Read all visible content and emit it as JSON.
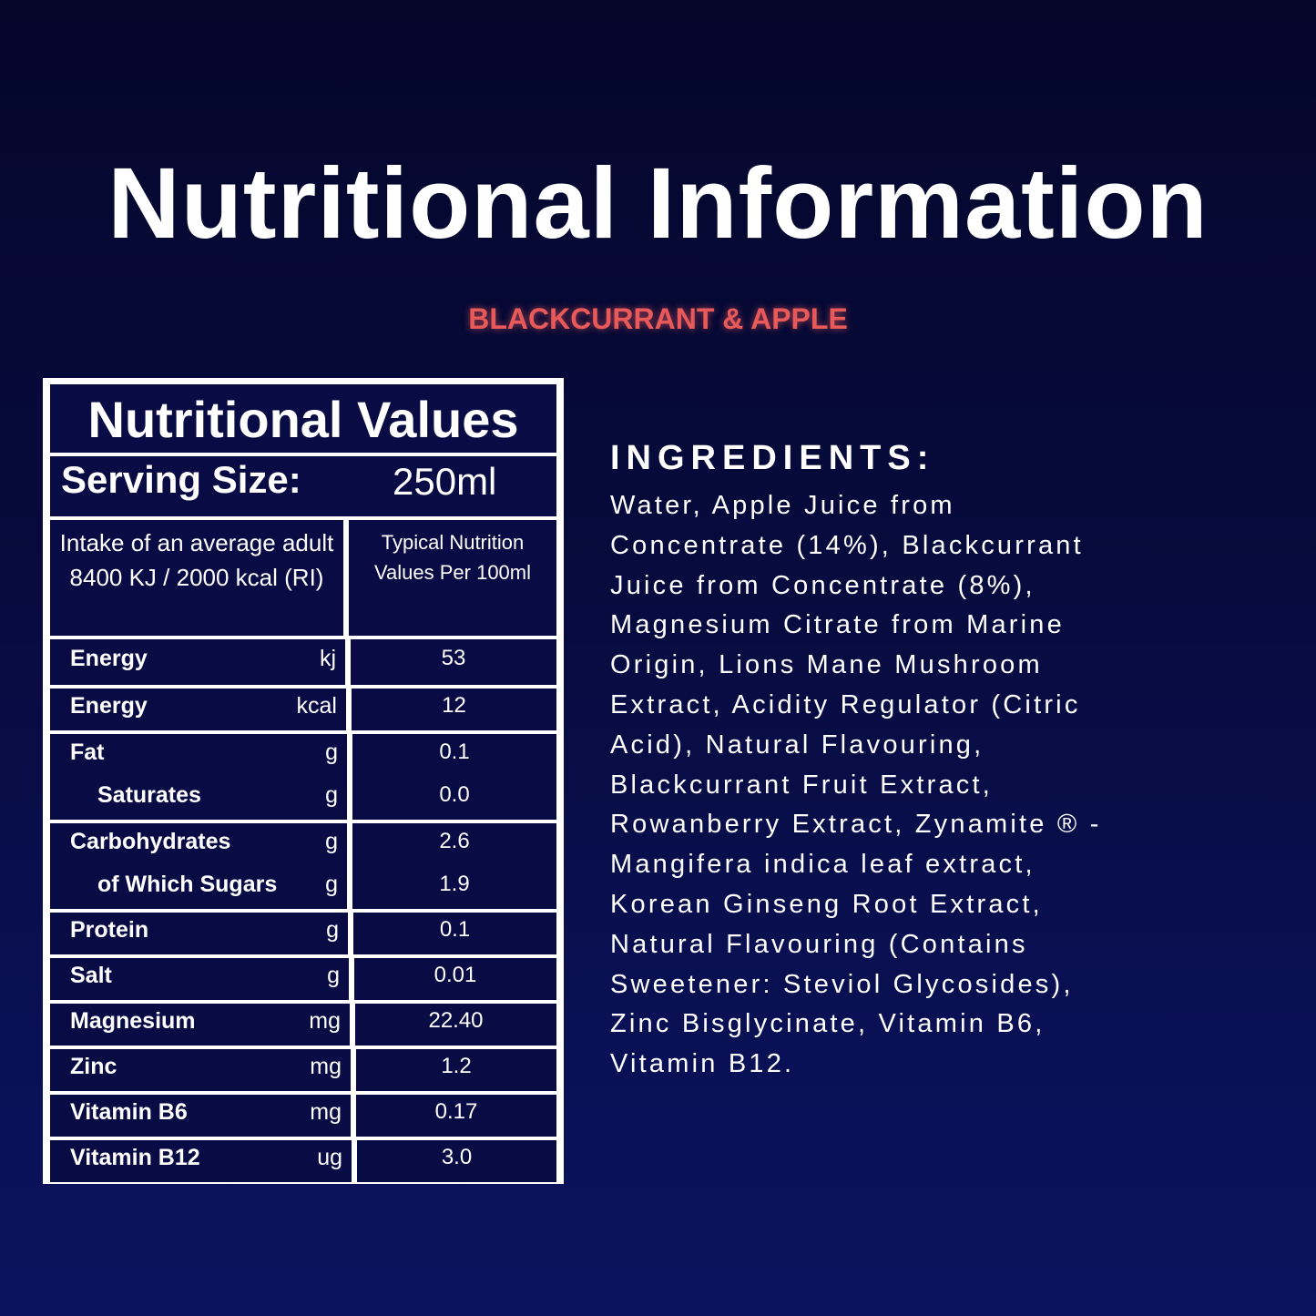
{
  "title": "Nutritional Information",
  "subtitle": "BLACKCURRANT & APPLE",
  "colors": {
    "accent": "#e85a5a",
    "background": "#070b3e",
    "border": "#ffffff"
  },
  "table": {
    "header": "Nutritional Values",
    "serving_label": "Serving Size:",
    "serving_value": "250ml",
    "intake_text": "Intake of an average adult 8400 KJ / 2000 kcal (RI)",
    "typical_text": "Typical Nutrition Values Per 100ml",
    "groups": [
      [
        {
          "name": "Energy",
          "unit": "kj",
          "value": "53"
        }
      ],
      [
        {
          "name": "Energy",
          "unit": "kcal",
          "value": "12"
        }
      ],
      [
        {
          "name": "Fat",
          "unit": "g",
          "value": "0.1"
        },
        {
          "name": "Saturates",
          "unit": "g",
          "value": "0.0",
          "sub": true
        }
      ],
      [
        {
          "name": "Carbohydrates",
          "unit": "g",
          "value": "2.6"
        },
        {
          "name": "of Which Sugars",
          "unit": "g",
          "value": "1.9",
          "sub": true
        }
      ],
      [
        {
          "name": "Protein",
          "unit": "g",
          "value": "0.1"
        }
      ],
      [
        {
          "name": "Salt",
          "unit": "g",
          "value": "0.01"
        }
      ],
      [
        {
          "name": "Magnesium",
          "unit": "mg",
          "value": "22.40"
        }
      ],
      [
        {
          "name": "Zinc",
          "unit": "mg",
          "value": "1.2"
        }
      ],
      [
        {
          "name": "Vitamin B6",
          "unit": "mg",
          "value": "0.17"
        }
      ],
      [
        {
          "name": "Vitamin B12",
          "unit": "ug",
          "value": "3.0"
        }
      ]
    ]
  },
  "ingredients": {
    "heading": "INGREDIENTS:",
    "lines": [
      "Water, Apple Juice from",
      "Concentrate (14%), Blackcurrant",
      "Juice from Concentrate (8%),",
      "Magnesium Citrate from Marine",
      "Origin, Lions Mane Mushroom",
      "Extract, Acidity Regulator (Citric",
      "Acid), Natural Flavouring,",
      "Blackcurrant Fruit Extract,",
      "Rowanberry Extract, Zynamite ® -",
      "Mangifera indica leaf extract,",
      "Korean Ginseng Root Extract,",
      "Natural Flavouring (Contains",
      "Sweetener: Steviol Glycosides),",
      "Zinc Bisglycinate, Vitamin B6,",
      "Vitamin B12."
    ]
  }
}
